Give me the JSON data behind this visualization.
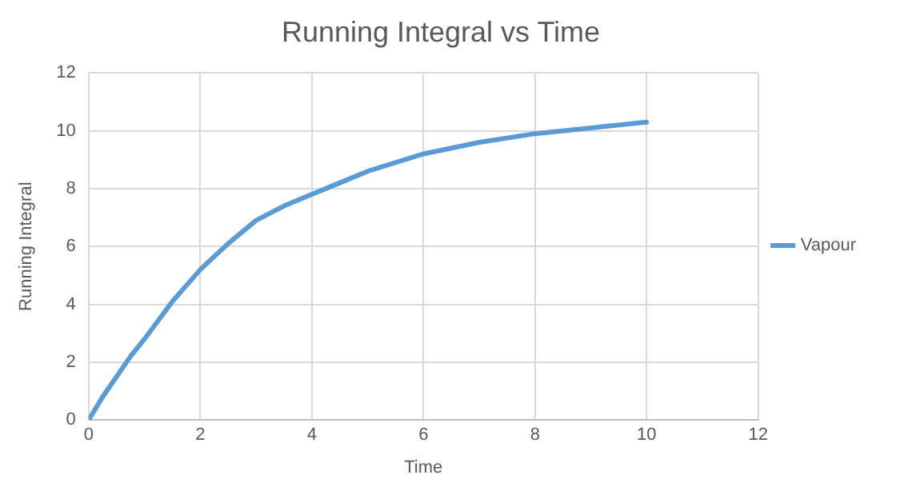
{
  "chart_data": {
    "type": "line",
    "title": "Running Integral vs Time",
    "xlabel": "Time",
    "ylabel": "Running Integral",
    "x": [
      0,
      0.25,
      0.5,
      0.75,
      1,
      1.5,
      2,
      2.5,
      3,
      3.5,
      4,
      4.5,
      5,
      6,
      7,
      8,
      9,
      10
    ],
    "series": [
      {
        "name": "Vapour",
        "color": "#5b9bd5",
        "values": [
          0,
          0.8,
          1.5,
          2.2,
          2.8,
          4.1,
          5.2,
          6.1,
          6.9,
          7.4,
          7.8,
          8.2,
          8.6,
          9.2,
          9.6,
          9.9,
          10.1,
          10.3
        ]
      }
    ],
    "xlim": [
      0,
      12
    ],
    "xticks": [
      0,
      2,
      4,
      6,
      8,
      10,
      12
    ],
    "ylim": [
      0,
      12
    ],
    "yticks": [
      0,
      2,
      4,
      6,
      8,
      10,
      12
    ],
    "grid": true,
    "legend": "right",
    "marker": "none",
    "line_style": "solid"
  }
}
